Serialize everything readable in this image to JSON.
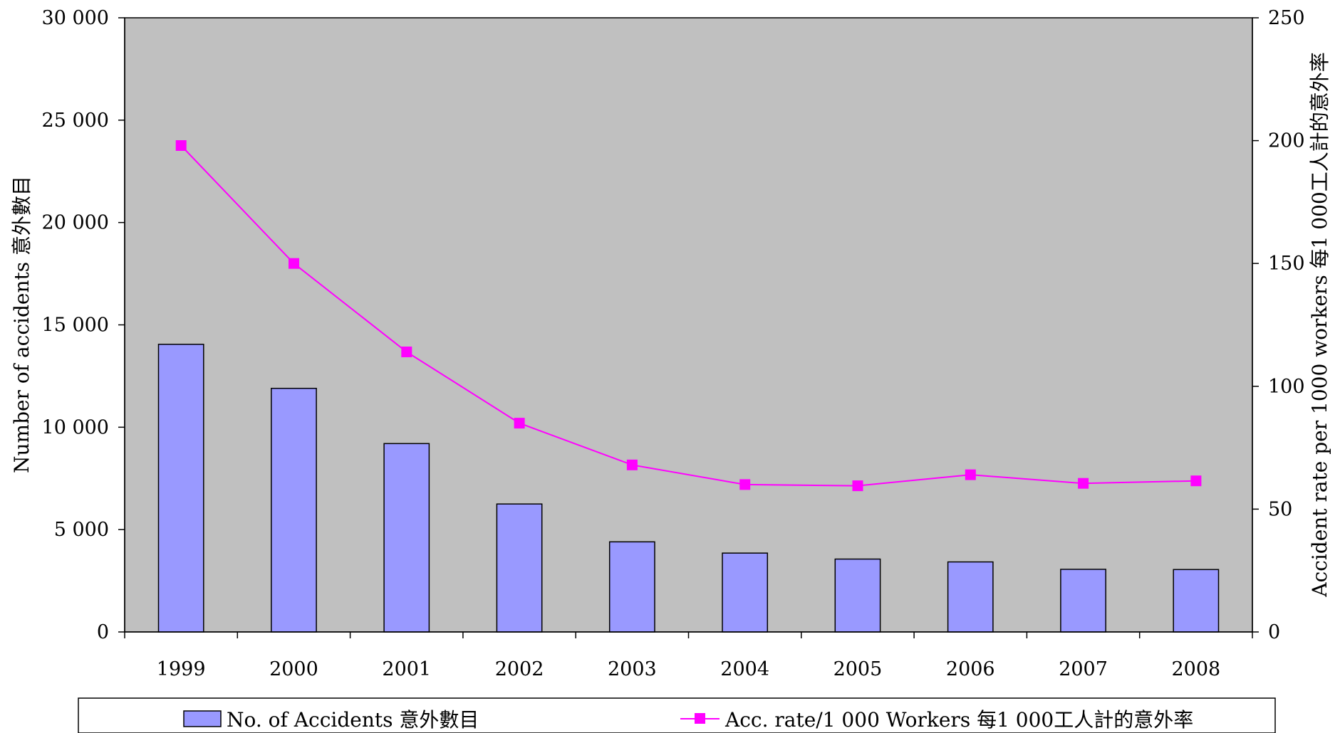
{
  "colors": {
    "plot_background": "#c0c0c0",
    "bar_fill": "#9999ff",
    "bar_stroke": "#000000",
    "line_color": "#ff00ff"
  },
  "legend": {
    "bar_label": "No. of Accidents 意外數目",
    "line_label": "Acc. rate/1 000 Workers 每1 000工人計的意外率"
  },
  "chart_data": {
    "type": "bar",
    "title": "",
    "categories": [
      "1999",
      "2000",
      "2001",
      "2002",
      "2003",
      "2004",
      "2005",
      "2006",
      "2007",
      "2008"
    ],
    "ylabel": "Number of accidents 意外數目",
    "ylabel_right": "Accident rate per 1000 workers 每1 000工人計的意外率",
    "ylim": [
      0,
      30000
    ],
    "ylim_right": [
      0,
      250
    ],
    "yticks_left": [
      "0",
      "5 000",
      "10 000",
      "15 000",
      "20 000",
      "25 000",
      "30 000"
    ],
    "yticks_right": [
      "0",
      "50",
      "100",
      "150",
      "200",
      "250"
    ],
    "grid": false,
    "legend_position": "bottom",
    "series": [
      {
        "name": "No. of Accidents 意外數目",
        "type": "bar",
        "axis": "left",
        "values": [
          14050,
          11900,
          9200,
          6250,
          4400,
          3850,
          3560,
          3420,
          3060,
          3050
        ]
      },
      {
        "name": "Acc. rate/1 000 Workers 每1 000工人計的意外率",
        "type": "line",
        "axis": "right",
        "values": [
          198,
          150,
          114,
          85,
          68,
          60,
          59.5,
          64,
          60.5,
          61.5
        ]
      }
    ]
  }
}
